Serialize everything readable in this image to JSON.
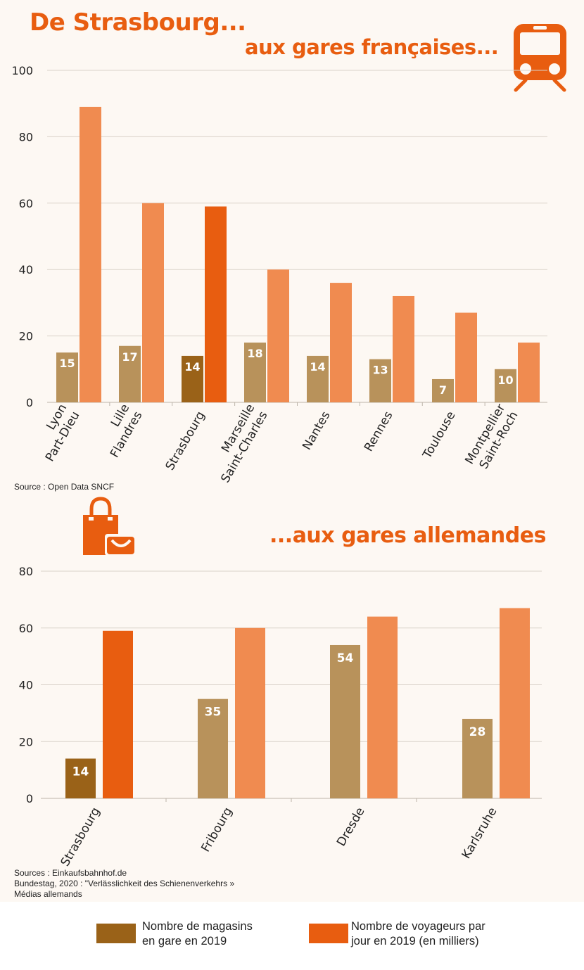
{
  "titles": {
    "main": "De Strasbourg...",
    "french": "aux gares françaises...",
    "german": "...aux gares allemandes"
  },
  "colors": {
    "background": "#fdf8f3",
    "title": "#e85d10",
    "shops": "#b8925b",
    "shops_highlight": "#9a6218",
    "travelers": "#f08b50",
    "travelers_highlight": "#e85d10",
    "grid": "#d9d2c9"
  },
  "icons": [
    "train-icon",
    "shopping-bag-icon"
  ],
  "sources": {
    "french": "Source : Open Data SNCF",
    "german": [
      "Sources : Einkaufsbahnhof.de",
      "Bundestag, 2020 : \"Verlässlichkeit des Schienenverkehrs »",
      "Médias allemands"
    ]
  },
  "legend": {
    "shops": [
      "Nombre de magasins",
      "en gare en 2019"
    ],
    "travelers": [
      "Nombre de voyageurs par",
      "jour en 2019 (en milliers)"
    ]
  },
  "chart_data": [
    {
      "type": "bar",
      "title": "aux gares françaises...",
      "categories": [
        [
          "Lyon",
          "Part-Dieu"
        ],
        [
          "Lille",
          "Flandres"
        ],
        [
          "Strasbourg"
        ],
        [
          "Marseille",
          "Saint-Charles"
        ],
        [
          "Nantes"
        ],
        [
          "Rennes"
        ],
        [
          "Toulouse"
        ],
        [
          "Montpellier",
          "Saint-Roch"
        ]
      ],
      "highlight_index": 2,
      "series": [
        {
          "name": "Nombre de magasins en gare en 2019",
          "values": [
            15,
            17,
            14,
            18,
            14,
            13,
            7,
            10
          ],
          "labels_shown": true
        },
        {
          "name": "Nombre de voyageurs par jour en 2019 (en milliers)",
          "values": [
            89,
            60,
            59,
            40,
            36,
            32,
            27,
            18
          ]
        }
      ],
      "ylim": [
        0,
        100
      ],
      "yticks": [
        0,
        20,
        40,
        60,
        80,
        100
      ],
      "grid": true
    },
    {
      "type": "bar",
      "title": "...aux gares allemandes",
      "categories": [
        [
          "Strasbourg"
        ],
        [
          "Fribourg"
        ],
        [
          "Dresde"
        ],
        [
          "Karlsruhe"
        ]
      ],
      "highlight_index": 0,
      "series": [
        {
          "name": "Nombre de magasins en gare en 2019",
          "values": [
            14,
            35,
            54,
            28
          ],
          "labels_shown": true
        },
        {
          "name": "Nombre de voyageurs par jour en 2019 (en milliers)",
          "values": [
            59,
            60,
            64,
            67
          ]
        }
      ],
      "ylim": [
        0,
        80
      ],
      "yticks": [
        0,
        20,
        40,
        60,
        80
      ],
      "grid": true
    }
  ]
}
